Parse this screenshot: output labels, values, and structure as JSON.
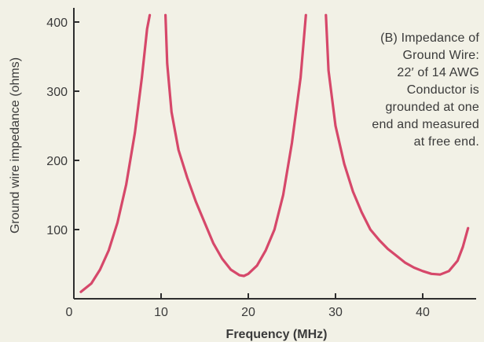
{
  "chart_data": {
    "type": "line",
    "xlabel": "Frequency (MHz)",
    "ylabel": "Ground wire impedance (ohms)",
    "xlim": [
      0,
      46
    ],
    "ylim": [
      0,
      410
    ],
    "x_ticks": [
      0,
      10,
      20,
      30,
      40
    ],
    "y_ticks": [
      100,
      200,
      300,
      400
    ],
    "grid": false,
    "annotation": [
      "(B) Impedance of",
      "Ground Wire:",
      "22′ of 14 AWG",
      "Conductor is",
      "grounded at one",
      "end and measured",
      "at free end."
    ],
    "colors": {
      "series": "#d6486a",
      "axis": "#2e2e2e",
      "text": "#3a3a3a",
      "background": "#f2f1e6"
    },
    "series": [
      {
        "segments": [
          [
            [
              0.8,
              10
            ],
            [
              2,
              22
            ],
            [
              3,
              42
            ],
            [
              4,
              70
            ],
            [
              5,
              110
            ],
            [
              6,
              165
            ],
            [
              7,
              240
            ],
            [
              7.8,
              320
            ],
            [
              8.4,
              390
            ],
            [
              8.7,
              410
            ]
          ],
          [
            [
              10.5,
              410
            ],
            [
              10.7,
              340
            ],
            [
              11.2,
              270
            ],
            [
              12,
              215
            ],
            [
              13,
              175
            ],
            [
              14,
              140
            ],
            [
              15,
              110
            ],
            [
              16,
              80
            ],
            [
              17,
              58
            ],
            [
              18,
              42
            ],
            [
              19,
              34
            ],
            [
              19.5,
              33
            ],
            [
              20,
              36
            ],
            [
              21,
              48
            ],
            [
              22,
              70
            ],
            [
              23,
              100
            ],
            [
              24,
              150
            ],
            [
              25,
              225
            ],
            [
              26,
              320
            ],
            [
              26.6,
              410
            ]
          ],
          [
            [
              28.9,
              410
            ],
            [
              29.2,
              330
            ],
            [
              30,
              250
            ],
            [
              31,
              195
            ],
            [
              32,
              155
            ],
            [
              33,
              125
            ],
            [
              34,
              100
            ],
            [
              35,
              85
            ],
            [
              36,
              72
            ],
            [
              37,
              62
            ],
            [
              38,
              52
            ],
            [
              39,
              45
            ],
            [
              40,
              40
            ],
            [
              41,
              36
            ],
            [
              42,
              35
            ],
            [
              43,
              40
            ],
            [
              44,
              55
            ],
            [
              44.6,
              75
            ],
            [
              45.2,
              102
            ]
          ]
        ]
      }
    ]
  }
}
